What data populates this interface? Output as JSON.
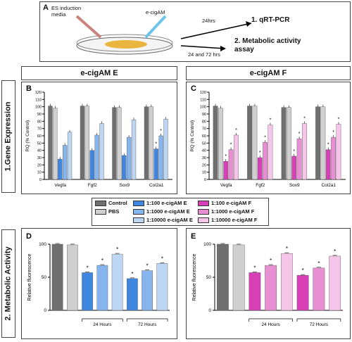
{
  "panel_a": {
    "label": "A",
    "dish_label_left": "ES induction media",
    "dish_label_right": "e-cigAM",
    "arrow_top_label": "24hrs",
    "arrow_bottom_label": "24 and 72 hrs",
    "outcome_1": "1. qRT-PCR",
    "outcome_2": "2. Metabolic activity assay"
  },
  "section_1": "1.Gene Expression",
  "section_2": "2. Metabolic Activity",
  "header_e": "e-cigAM E",
  "header_f": "e-cigAM F",
  "legend": [
    {
      "label": "Control",
      "color": "#6f6f6f"
    },
    {
      "label": "PBS",
      "color": "#cfcfcf"
    },
    {
      "label": "1:100 e-cigAM E",
      "color": "#3f86e0"
    },
    {
      "label": "1:1000 e-cigAM E",
      "color": "#86b4ec"
    },
    {
      "label": "1:10000 e-cigAM E",
      "color": "#bdd6f3"
    },
    {
      "label": "1:100 e-cigAM F",
      "color": "#d63fb5"
    },
    {
      "label": "1:1000 e-cigAM F",
      "color": "#e88fd3"
    },
    {
      "label": "1:10000 e-cigAM F",
      "color": "#f6c6ea"
    }
  ],
  "chart_data": [
    {
      "panel": "B",
      "type": "bar",
      "ylabel": "RQ (% Control)",
      "ylim": [
        0,
        120
      ],
      "yticks": [
        0,
        10,
        20,
        30,
        40,
        50,
        60,
        70,
        80,
        90,
        100,
        110,
        120
      ],
      "categories": [
        "Vegfa",
        "Fgf2",
        "Sox9",
        "Col2a1"
      ],
      "series": [
        {
          "name": "Control",
          "color": "#6f6f6f",
          "values": [
            101,
            101,
            99,
            100
          ]
        },
        {
          "name": "PBS",
          "color": "#cfcfcf",
          "values": [
            98,
            101,
            99,
            100
          ]
        },
        {
          "name": "1:100 e-cigAM E",
          "color": "#3f86e0",
          "values": [
            28,
            40,
            33,
            42
          ]
        },
        {
          "name": "1:1000 e-cigAM E",
          "color": "#86b4ec",
          "values": [
            47,
            61,
            58,
            60
          ]
        },
        {
          "name": "1:10000 e-cigAM E",
          "color": "#bdd6f3",
          "values": [
            65,
            77,
            82,
            83
          ]
        }
      ],
      "significant": [
        [
          3,
          2
        ],
        [
          3,
          3
        ]
      ]
    },
    {
      "panel": "C",
      "type": "bar",
      "ylabel": "RQ (% Control)",
      "ylim": [
        0,
        120
      ],
      "yticks": [
        0,
        10,
        20,
        30,
        40,
        50,
        60,
        70,
        80,
        90,
        100,
        110,
        120
      ],
      "categories": [
        "Vegfa",
        "Fgf2",
        "Sox9",
        "Col2a1"
      ],
      "series": [
        {
          "name": "Control",
          "color": "#6f6f6f",
          "values": [
            101,
            101,
            99,
            100
          ]
        },
        {
          "name": "PBS",
          "color": "#cfcfcf",
          "values": [
            98,
            101,
            99,
            100
          ]
        },
        {
          "name": "1:100 e-cigAM F",
          "color": "#d63fb5",
          "values": [
            25,
            30,
            32,
            41
          ]
        },
        {
          "name": "1:1000 e-cigAM F",
          "color": "#e88fd3",
          "values": [
            41,
            51,
            56,
            58
          ]
        },
        {
          "name": "1:10000 e-cigAM F",
          "color": "#f6c6ea",
          "values": [
            61,
            75,
            77,
            76
          ]
        }
      ],
      "significant": [
        [
          0,
          2
        ],
        [
          0,
          3
        ],
        [
          0,
          4
        ],
        [
          1,
          2
        ],
        [
          1,
          3
        ],
        [
          1,
          4
        ],
        [
          2,
          2
        ],
        [
          2,
          3
        ],
        [
          2,
          4
        ],
        [
          3,
          2
        ],
        [
          3,
          3
        ],
        [
          3,
          4
        ]
      ]
    },
    {
      "panel": "D",
      "type": "bar",
      "ylabel": "Relative fluorescence",
      "ylim": [
        0,
        100
      ],
      "yticks": [
        0,
        50,
        100
      ],
      "bars": [
        {
          "color": "#6f6f6f",
          "value": 100,
          "star": false
        },
        {
          "color": "#cfcfcf",
          "value": 99,
          "star": false
        },
        {
          "color": "#3f86e0",
          "value": 57,
          "star": true
        },
        {
          "color": "#86b4ec",
          "value": 68,
          "star": true
        },
        {
          "color": "#bdd6f3",
          "value": 85,
          "star": true
        },
        {
          "color": "#3f86e0",
          "value": 48,
          "star": true
        },
        {
          "color": "#86b4ec",
          "value": 60,
          "star": true
        },
        {
          "color": "#bdd6f3",
          "value": 71,
          "star": true
        }
      ],
      "groups": [
        {
          "label": "24 Hours",
          "from": 2,
          "to": 4
        },
        {
          "label": "72 Hours",
          "from": 5,
          "to": 7
        }
      ]
    },
    {
      "panel": "E",
      "type": "bar",
      "ylabel": "Relative fluorescence",
      "ylim": [
        0,
        100
      ],
      "yticks": [
        0,
        50,
        100
      ],
      "bars": [
        {
          "color": "#6f6f6f",
          "value": 100,
          "star": false
        },
        {
          "color": "#cfcfcf",
          "value": 99,
          "star": false
        },
        {
          "color": "#d63fb5",
          "value": 57,
          "star": true
        },
        {
          "color": "#e88fd3",
          "value": 68,
          "star": true
        },
        {
          "color": "#f6c6ea",
          "value": 86,
          "star": true
        },
        {
          "color": "#d63fb5",
          "value": 53,
          "star": true
        },
        {
          "color": "#e88fd3",
          "value": 64,
          "star": true
        },
        {
          "color": "#f6c6ea",
          "value": 82,
          "star": true
        }
      ],
      "groups": [
        {
          "label": "24 Hours",
          "from": 2,
          "to": 4
        },
        {
          "label": "72 Hours",
          "from": 5,
          "to": 7
        }
      ]
    }
  ]
}
